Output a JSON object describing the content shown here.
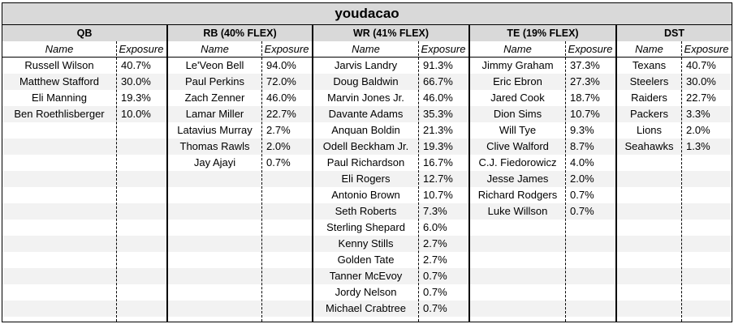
{
  "title": "youdacao",
  "columns": {
    "name": "Name",
    "exposure": "Exposure"
  },
  "groups": [
    {
      "id": "qb",
      "header": "QB",
      "rows": [
        {
          "name": "Russell Wilson",
          "exposure": "40.7%"
        },
        {
          "name": "Matthew Stafford",
          "exposure": "30.0%"
        },
        {
          "name": "Eli Manning",
          "exposure": "19.3%"
        },
        {
          "name": "Ben Roethlisberger",
          "exposure": "10.0%"
        }
      ]
    },
    {
      "id": "rb",
      "header": "RB (40% FLEX)",
      "rows": [
        {
          "name": "Le'Veon Bell",
          "exposure": "94.0%"
        },
        {
          "name": "Paul Perkins",
          "exposure": "72.0%"
        },
        {
          "name": "Zach Zenner",
          "exposure": "46.0%"
        },
        {
          "name": "Lamar Miller",
          "exposure": "22.7%"
        },
        {
          "name": "Latavius Murray",
          "exposure": "2.7%"
        },
        {
          "name": "Thomas Rawls",
          "exposure": "2.0%"
        },
        {
          "name": "Jay Ajayi",
          "exposure": "0.7%"
        }
      ]
    },
    {
      "id": "wr",
      "header": "WR (41% FLEX)",
      "rows": [
        {
          "name": "Jarvis Landry",
          "exposure": "91.3%"
        },
        {
          "name": "Doug Baldwin",
          "exposure": "66.7%"
        },
        {
          "name": "Marvin Jones Jr.",
          "exposure": "46.0%"
        },
        {
          "name": "Davante Adams",
          "exposure": "35.3%"
        },
        {
          "name": "Anquan Boldin",
          "exposure": "21.3%"
        },
        {
          "name": "Odell Beckham Jr.",
          "exposure": "19.3%"
        },
        {
          "name": "Paul Richardson",
          "exposure": "16.7%"
        },
        {
          "name": "Eli Rogers",
          "exposure": "12.7%"
        },
        {
          "name": "Antonio Brown",
          "exposure": "10.7%"
        },
        {
          "name": "Seth Roberts",
          "exposure": "7.3%"
        },
        {
          "name": "Sterling Shepard",
          "exposure": "6.0%"
        },
        {
          "name": "Kenny Stills",
          "exposure": "2.7%"
        },
        {
          "name": "Golden Tate",
          "exposure": "2.7%"
        },
        {
          "name": "Tanner McEvoy",
          "exposure": "0.7%"
        },
        {
          "name": "Jordy Nelson",
          "exposure": "0.7%"
        },
        {
          "name": "Michael Crabtree",
          "exposure": "0.7%"
        }
      ]
    },
    {
      "id": "te",
      "header": "TE (19% FLEX)",
      "rows": [
        {
          "name": "Jimmy Graham",
          "exposure": "37.3%"
        },
        {
          "name": "Eric Ebron",
          "exposure": "27.3%"
        },
        {
          "name": "Jared Cook",
          "exposure": "18.7%"
        },
        {
          "name": "Dion Sims",
          "exposure": "10.7%"
        },
        {
          "name": "Will Tye",
          "exposure": "9.3%"
        },
        {
          "name": "Clive Walford",
          "exposure": "8.7%"
        },
        {
          "name": "C.J. Fiedorowicz",
          "exposure": "4.0%"
        },
        {
          "name": "Jesse James",
          "exposure": "2.0%"
        },
        {
          "name": "Richard Rodgers",
          "exposure": "0.7%"
        },
        {
          "name": "Luke Willson",
          "exposure": "0.7%"
        }
      ]
    },
    {
      "id": "dst",
      "header": "DST",
      "rows": [
        {
          "name": "Texans",
          "exposure": "40.7%"
        },
        {
          "name": "Steelers",
          "exposure": "30.0%"
        },
        {
          "name": "Raiders",
          "exposure": "22.7%"
        },
        {
          "name": "Packers",
          "exposure": "3.3%"
        },
        {
          "name": "Lions",
          "exposure": "2.0%"
        },
        {
          "name": "Seahawks",
          "exposure": "1.3%"
        }
      ]
    }
  ]
}
